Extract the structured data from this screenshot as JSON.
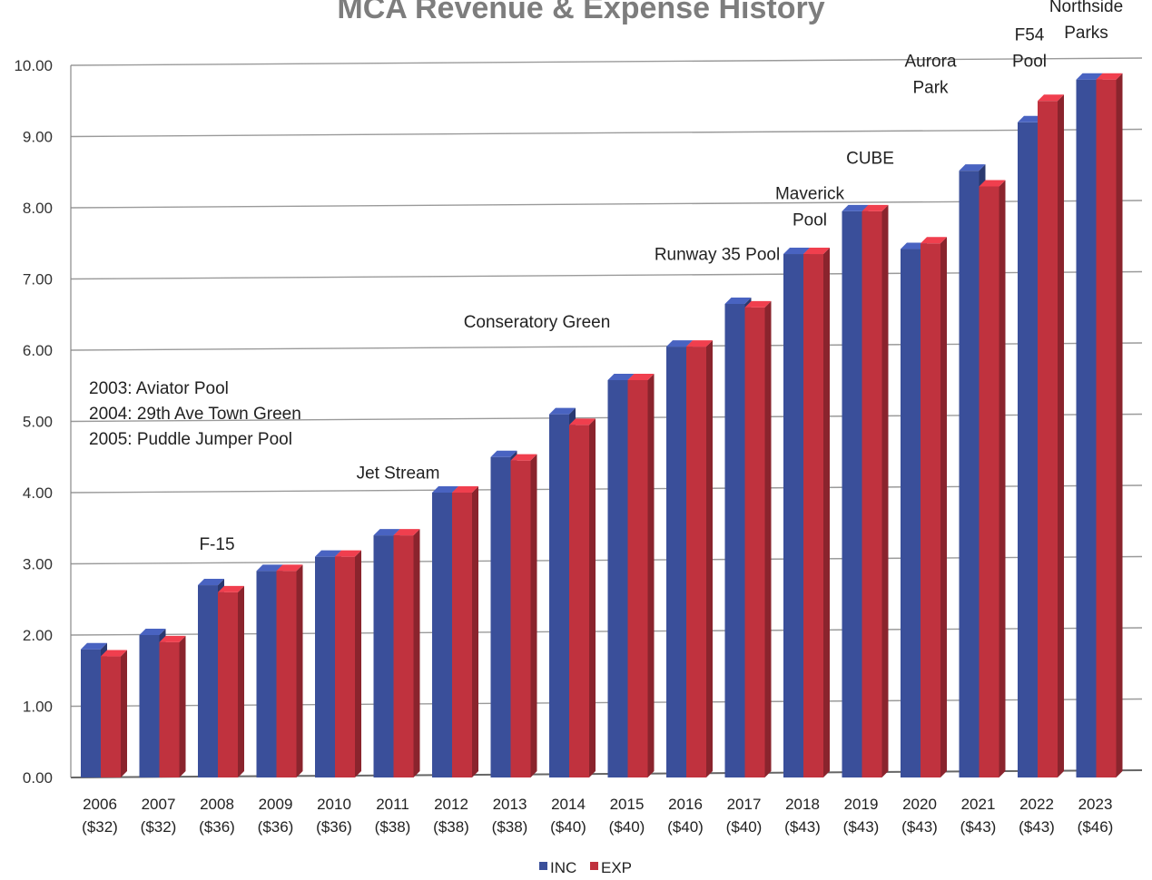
{
  "chart_data": {
    "type": "bar",
    "title": "MCA Revenue & Expense History",
    "categories": [
      "2006",
      "2007",
      "2008",
      "2009",
      "2010",
      "2011",
      "2012",
      "2013",
      "2014",
      "2015",
      "2016",
      "2017",
      "2018",
      "2019",
      "2020",
      "2021",
      "2022",
      "2023"
    ],
    "category_sublabels": [
      "($32)",
      "($32)",
      "($36)",
      "($36)",
      "($36)",
      "($38)",
      "($38)",
      "($38)",
      "($40)",
      "($40)",
      "($40)",
      "($40)",
      "($43)",
      "($43)",
      "($43)",
      "($43)",
      "($43)",
      "($46)"
    ],
    "series": [
      {
        "name": "INC",
        "color": "#3a4f9a",
        "values": [
          1.8,
          2.0,
          2.7,
          2.9,
          3.1,
          3.4,
          4.0,
          4.5,
          5.1,
          5.58,
          6.05,
          6.65,
          7.35,
          7.95,
          7.42,
          8.52,
          9.2,
          9.8
        ]
      },
      {
        "name": "EXP",
        "color": "#c0323e",
        "values": [
          1.7,
          1.9,
          2.6,
          2.9,
          3.1,
          3.4,
          4.0,
          4.45,
          4.95,
          5.58,
          6.05,
          6.6,
          7.35,
          7.95,
          7.5,
          8.3,
          9.5,
          9.8
        ]
      }
    ],
    "ylim": [
      0,
      10
    ],
    "yticks": [
      "0.00",
      "1.00",
      "2.00",
      "3.00",
      "4.00",
      "5.00",
      "6.00",
      "7.00",
      "8.00",
      "9.00",
      "10.00"
    ],
    "grid": true,
    "legend_position": "bottom",
    "annotations": [
      {
        "anchor": "2008",
        "lines": [
          "F-15"
        ],
        "y": 3.2
      },
      {
        "anchor": "2011",
        "lines": [
          "Jet Stream"
        ],
        "y": 4.2
      },
      {
        "anchor": "2013",
        "lines": [
          "Conseratory Green"
        ],
        "y": 6.32
      },
      {
        "anchor": "2016",
        "lines": [
          "Runway 35 Pool"
        ],
        "y": 7.27
      },
      {
        "anchor": "2018",
        "lines": [
          "Maverick",
          "Pool"
        ],
        "y": 8.12
      },
      {
        "anchor": "2019",
        "lines": [
          "CUBE"
        ],
        "y": 8.62
      },
      {
        "anchor": "2020",
        "lines": [
          "Aurora",
          "Park"
        ],
        "y": 9.98
      },
      {
        "anchor": "2022",
        "lines": [
          "F54",
          "Pool"
        ],
        "y": 10.35
      },
      {
        "anchor": "2023",
        "lines": [
          "Northside",
          "Parks"
        ],
        "y": 10.75
      }
    ],
    "note_lines": [
      "2003: Aviator Pool",
      "2004: 29th Ave Town Green",
      "2005:  Puddle Jumper Pool"
    ]
  }
}
